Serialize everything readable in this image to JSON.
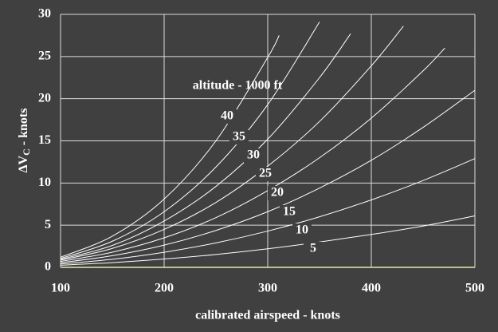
{
  "chart_data": {
    "type": "line",
    "annotation": "altitude - 1000 ft",
    "xlabel": "calibrated airspeed - knots",
    "ylabel": [
      "ΔV",
      "C",
      " - knots"
    ],
    "xlim": [
      100,
      500
    ],
    "xticks": [
      100,
      200,
      300,
      400,
      500
    ],
    "ylim": [
      0,
      30
    ],
    "yticks": [
      0,
      5,
      10,
      15,
      20,
      25,
      30
    ],
    "grid": true,
    "series": [
      {
        "name": "40",
        "color": "#ffffff",
        "x": [
          100,
          150,
          200,
          250,
          300,
          311
        ],
        "values": [
          1.2,
          3.7,
          8.1,
          15.0,
          24.9,
          27.5
        ]
      },
      {
        "name": "35",
        "color": "#ffffff",
        "x": [
          100,
          150,
          200,
          250,
          300,
          350
        ],
        "values": [
          1.05,
          3.1,
          6.6,
          11.9,
          19.3,
          29.1
        ]
      },
      {
        "name": "30",
        "color": "#ffffff",
        "x": [
          100,
          150,
          200,
          250,
          300,
          350,
          380
        ],
        "values": [
          0.95,
          2.6,
          5.5,
          9.6,
          15.2,
          22.5,
          27.7
        ]
      },
      {
        "name": "25",
        "color": "#ffffff",
        "x": [
          100,
          150,
          200,
          250,
          300,
          350,
          400,
          431
        ],
        "values": [
          0.85,
          2.25,
          4.5,
          7.7,
          12.0,
          17.3,
          23.9,
          28.6
        ]
      },
      {
        "name": "20",
        "color": "#ffffff",
        "x": [
          100,
          150,
          200,
          250,
          300,
          350,
          400,
          450,
          471
        ],
        "values": [
          0.7,
          1.8,
          3.5,
          5.9,
          9.1,
          13.0,
          17.7,
          23.3,
          26.0
        ]
      },
      {
        "name": "15",
        "color": "#ffffff",
        "x": [
          100,
          150,
          200,
          250,
          300,
          350,
          400,
          450,
          500
        ],
        "values": [
          0.55,
          1.38,
          2.64,
          4.38,
          6.6,
          9.4,
          12.7,
          16.6,
          21.0
        ]
      },
      {
        "name": "10",
        "color": "#ffffff",
        "x": [
          100,
          150,
          200,
          250,
          300,
          350,
          400,
          450,
          500
        ],
        "values": [
          0.4,
          0.96,
          1.79,
          2.9,
          4.3,
          6.0,
          8.0,
          10.3,
          12.9
        ]
      },
      {
        "name": "5",
        "color": "#ffffff",
        "x": [
          100,
          150,
          200,
          250,
          300,
          350,
          400,
          450,
          500
        ],
        "values": [
          0.25,
          0.56,
          0.99,
          1.53,
          2.2,
          3.0,
          3.9,
          4.9,
          6.1
        ]
      }
    ]
  }
}
